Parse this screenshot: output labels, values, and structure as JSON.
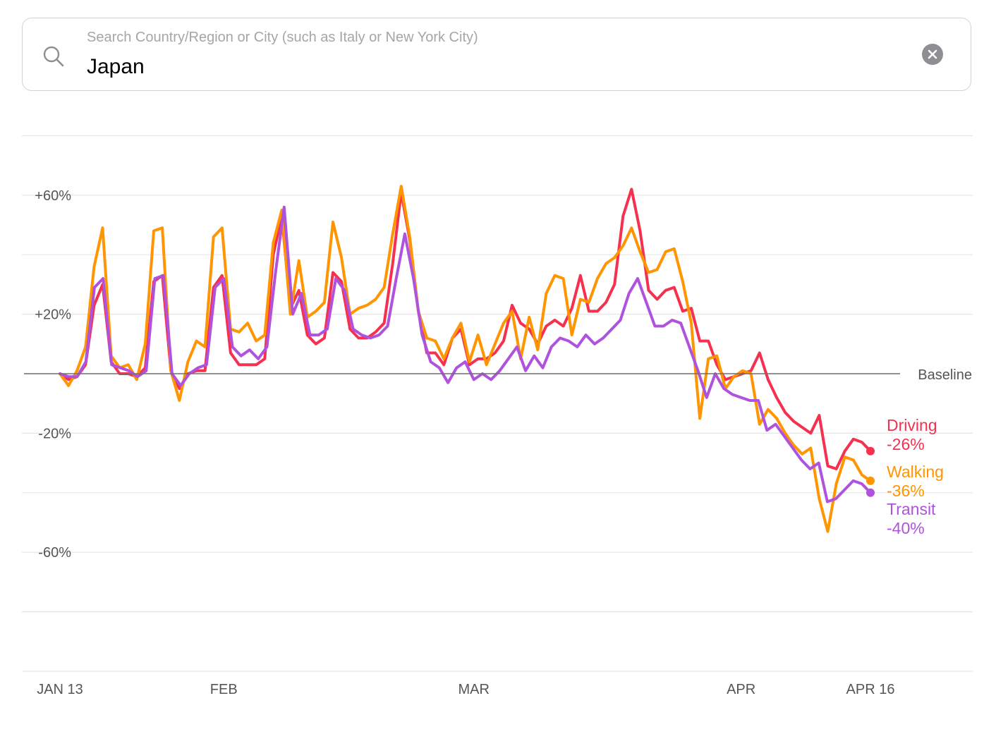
{
  "search": {
    "placeholder": "Search Country/Region or City (such as Italy or New York City)",
    "value": "Japan"
  },
  "icons": {
    "search": "search-icon",
    "clear": "clear-circle-icon"
  },
  "chart_data": {
    "type": "line",
    "title": "",
    "xlabel": "",
    "ylabel": "",
    "ylim": [
      -100,
      80
    ],
    "grid": true,
    "baseline_label": "Baseline",
    "y_ticks": [
      {
        "value": 60,
        "label": "+60%"
      },
      {
        "value": 20,
        "label": "+20%"
      },
      {
        "value": -20,
        "label": "-20%"
      },
      {
        "value": -60,
        "label": "-60%"
      }
    ],
    "x_ticks": [
      {
        "date": "2020-01-13",
        "label": "JAN 13"
      },
      {
        "date": "2020-02-01",
        "label": "FEB"
      },
      {
        "date": "2020-03-01",
        "label": "MAR"
      },
      {
        "date": "2020-04-01",
        "label": "APR"
      },
      {
        "date": "2020-04-16",
        "label": "APR 16"
      }
    ],
    "x_start": "2020-01-13",
    "x_end": "2020-04-16",
    "series": [
      {
        "name": "Driving",
        "end_label": "-26%",
        "color": "#f6304f",
        "values": [
          0,
          -2,
          -1,
          3,
          23,
          30,
          4,
          0,
          0,
          -1,
          2,
          31,
          33,
          1,
          -5,
          0,
          1,
          1,
          29,
          33,
          7,
          3,
          3,
          3,
          5,
          40,
          53,
          22,
          28,
          13,
          10,
          12,
          34,
          31,
          15,
          12,
          12,
          14,
          17,
          37,
          61,
          45,
          21,
          7,
          7,
          3,
          12,
          15,
          3,
          5,
          5,
          7,
          11,
          23,
          17,
          15,
          10,
          16,
          18,
          16,
          22,
          33,
          21,
          21,
          24,
          30,
          53,
          62,
          48,
          28,
          25,
          28,
          29,
          21,
          22,
          11,
          11,
          3,
          -2,
          -1,
          0,
          1,
          7,
          -2,
          -8,
          -13,
          -16,
          -18,
          -20,
          -14,
          -31,
          -32,
          -26,
          -22,
          -23,
          -26
        ]
      },
      {
        "name": "Walking",
        "end_label": "-36%",
        "color": "#ff9500",
        "values": [
          0,
          -4,
          1,
          9,
          36,
          49,
          6,
          2,
          3,
          -2,
          10,
          48,
          49,
          1,
          -9,
          4,
          11,
          9,
          46,
          49,
          15,
          14,
          17,
          11,
          13,
          44,
          55,
          20,
          38,
          19,
          21,
          24,
          51,
          39,
          20,
          22,
          23,
          25,
          29,
          47,
          63,
          46,
          21,
          12,
          11,
          5,
          12,
          17,
          4,
          13,
          3,
          10,
          17,
          21,
          5,
          19,
          8,
          27,
          33,
          32,
          13,
          25,
          24,
          32,
          37,
          39,
          43,
          49,
          41,
          34,
          35,
          41,
          42,
          31,
          17,
          -15,
          5,
          6,
          -5,
          -1,
          1,
          0,
          -17,
          -12,
          -15,
          -20,
          -24,
          -27,
          -25,
          -42,
          -53,
          -37,
          -28,
          -29,
          -34,
          -36
        ]
      },
      {
        "name": "Transit",
        "end_label": "-40%",
        "color": "#af52de",
        "values": [
          0,
          -1,
          -1,
          4,
          29,
          32,
          3,
          2,
          1,
          -1,
          1,
          32,
          33,
          0,
          -4,
          0,
          2,
          3,
          29,
          32,
          9,
          6,
          8,
          5,
          9,
          34,
          56,
          20,
          27,
          13,
          13,
          15,
          32,
          28,
          15,
          13,
          12,
          13,
          16,
          32,
          47,
          32,
          13,
          4,
          2,
          -3,
          2,
          4,
          -2,
          0,
          -2,
          1,
          5,
          9,
          1,
          6,
          2,
          9,
          12,
          11,
          9,
          13,
          10,
          12,
          15,
          18,
          27,
          32,
          24,
          16,
          16,
          18,
          17,
          9,
          1,
          -8,
          0,
          -5,
          -7,
          -8,
          -9,
          -9,
          -19,
          -17,
          -21,
          -25,
          -29,
          -32,
          -30,
          -43,
          -42,
          -39,
          -36,
          -37,
          -40
        ]
      }
    ]
  }
}
